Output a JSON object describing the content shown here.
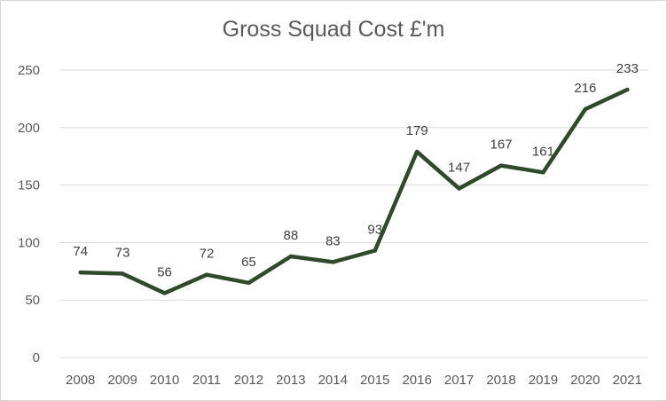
{
  "chart_data": {
    "type": "line",
    "title": "Gross Squad Cost £'m",
    "xlabel": "",
    "ylabel": "",
    "categories": [
      "2008",
      "2009",
      "2010",
      "2011",
      "2012",
      "2013",
      "2014",
      "2015",
      "2016",
      "2017",
      "2018",
      "2019",
      "2020",
      "2021"
    ],
    "series": [
      {
        "name": "Gross Squad Cost £'m",
        "values": [
          74,
          73,
          56,
          72,
          65,
          88,
          83,
          93,
          179,
          147,
          167,
          161,
          216,
          233
        ]
      }
    ],
    "ylim": [
      0,
      250
    ],
    "yticks": [
      0,
      50,
      100,
      150,
      200,
      250
    ],
    "grid": true,
    "legend": "none",
    "line_color": "#2f4a2a"
  }
}
